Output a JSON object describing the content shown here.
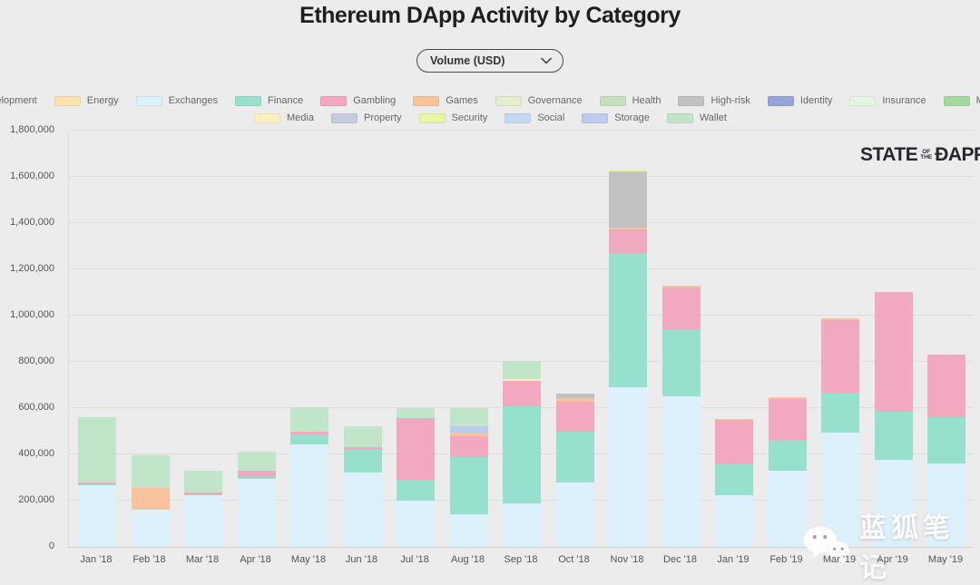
{
  "header": {
    "title": "Ethereum DApp Activity by Category"
  },
  "controls": {
    "metric_dropdown": {
      "value": "Volume (USD)",
      "icon": "chevron-down-icon"
    }
  },
  "legend": {
    "items": [
      {
        "label": "Development",
        "color": "#b3d4f5"
      },
      {
        "label": "Energy",
        "color": "#fbe3b1"
      },
      {
        "label": "Exchanges",
        "color": "#dcf1fb"
      },
      {
        "label": "Finance",
        "color": "#96e0cd"
      },
      {
        "label": "Gambling",
        "color": "#f2a8bf"
      },
      {
        "label": "Games",
        "color": "#f8c29c"
      },
      {
        "label": "Governance",
        "color": "#e3eecb"
      },
      {
        "label": "Health",
        "color": "#c6e0bd"
      },
      {
        "label": "High-risk",
        "color": "#c2c2c2"
      },
      {
        "label": "Identity",
        "color": "#97a5d8"
      },
      {
        "label": "Insurance",
        "color": "#e3f7e0"
      },
      {
        "label": "Marketplaces",
        "color": "#a2da9b"
      },
      {
        "label": "Media",
        "color": "#fcf0c0"
      },
      {
        "label": "Property",
        "color": "#c4cbdd"
      },
      {
        "label": "Security",
        "color": "#e9f5a5"
      },
      {
        "label": "Social",
        "color": "#c2d8f2"
      },
      {
        "label": "Storage",
        "color": "#bfcbee"
      },
      {
        "label": "Wallet",
        "color": "#c0e5c9"
      }
    ]
  },
  "logo": {
    "line1": "STATE",
    "line2a": "OF",
    "line2b": "THE",
    "line3": "ÐAPPS"
  },
  "watermark": {
    "icon": "wechat-icon",
    "text": "蓝狐笔记"
  },
  "chart_data": {
    "type": "bar",
    "stacked": true,
    "title": "Ethereum DApp Activity by Category",
    "xlabel": "",
    "ylabel": "Volume (USD)",
    "ylim": [
      0,
      1800000
    ],
    "grid": true,
    "legend_position": "top",
    "y_ticks": [
      0,
      200000,
      400000,
      600000,
      800000,
      1000000,
      1200000,
      1400000,
      1600000,
      1800000
    ],
    "y_tick_labels": [
      "0",
      "200,000",
      "400,000",
      "600,000",
      "800,000",
      "1,000,000",
      "1,200,000",
      "1,400,000",
      "1,600,000",
      "1,800,000"
    ],
    "categories": [
      "Jan '18",
      "Feb '18",
      "Mar '18",
      "Apr '18",
      "May '18",
      "Jun '18",
      "Jul '18",
      "Aug '18",
      "Sep '18",
      "Oct '18",
      "Nov '18",
      "Dec '18",
      "Jan '19",
      "Feb '19",
      "Mar '19",
      "Apr '19",
      "May '19"
    ],
    "series": [
      {
        "name": "Exchanges",
        "values": [
          265000,
          160000,
          225000,
          295000,
          445000,
          320000,
          200000,
          140000,
          190000,
          278000,
          690000,
          650000,
          222000,
          330000,
          495000,
          378000,
          360000
        ]
      },
      {
        "name": "Finance",
        "values": [
          6000,
          0,
          0,
          8000,
          40000,
          105000,
          90000,
          247000,
          416000,
          220000,
          580000,
          290000,
          136000,
          127000,
          172000,
          208000,
          200000
        ]
      },
      {
        "name": "Gambling",
        "values": [
          6000,
          0,
          12000,
          28000,
          12000,
          8000,
          267000,
          92000,
          110000,
          130000,
          102000,
          180000,
          190000,
          183000,
          312000,
          515000,
          270000
        ]
      },
      {
        "name": "Games",
        "values": [
          0,
          95000,
          0,
          0,
          0,
          0,
          0,
          10000,
          0,
          15000,
          10000,
          8000,
          6000,
          8000,
          8000,
          0,
          0
        ]
      },
      {
        "name": "High-risk",
        "values": [
          0,
          0,
          0,
          0,
          0,
          0,
          0,
          0,
          0,
          20000,
          240000,
          0,
          0,
          0,
          0,
          0,
          0
        ]
      },
      {
        "name": "Media",
        "values": [
          0,
          0,
          0,
          0,
          0,
          0,
          0,
          0,
          8000,
          0,
          0,
          0,
          0,
          0,
          0,
          0,
          0
        ]
      },
      {
        "name": "Security",
        "values": [
          0,
          0,
          0,
          0,
          0,
          0,
          0,
          0,
          0,
          0,
          8000,
          0,
          0,
          0,
          0,
          0,
          0
        ]
      },
      {
        "name": "Storage",
        "values": [
          0,
          0,
          0,
          0,
          0,
          0,
          0,
          32000,
          0,
          0,
          0,
          0,
          0,
          0,
          0,
          0,
          0
        ]
      },
      {
        "name": "Wallet",
        "values": [
          283000,
          143000,
          93000,
          80000,
          108000,
          90000,
          45000,
          78000,
          82000,
          0,
          0,
          0,
          0,
          0,
          0,
          0,
          0
        ]
      }
    ]
  }
}
